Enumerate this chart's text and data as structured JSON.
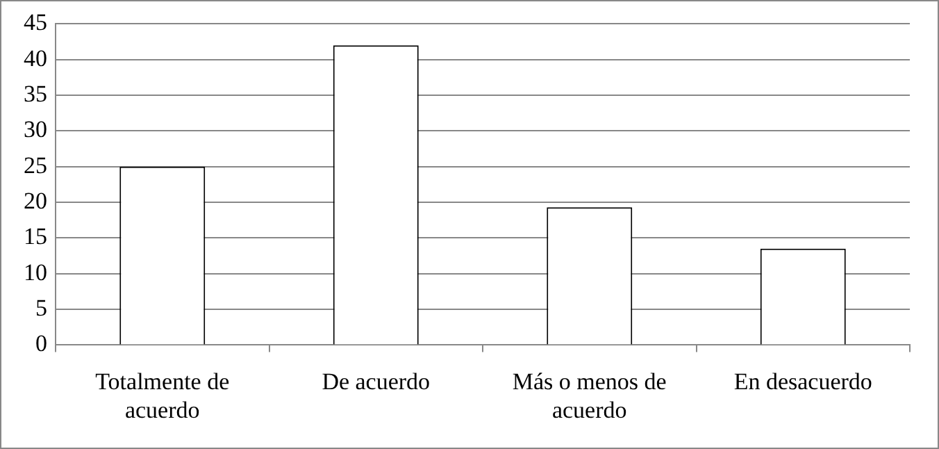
{
  "chart_data": {
    "type": "bar",
    "categories": [
      "Totalmente de acuerdo",
      "De acuerdo",
      "Más o menos de acuerdo",
      "En desacuerdo"
    ],
    "values": [
      25,
      42,
      19.3,
      13.5
    ],
    "color": "#ffffff",
    "ylim": [
      0,
      45
    ],
    "yticks": [
      0,
      5,
      10,
      15,
      20,
      25,
      30,
      35,
      40,
      45
    ],
    "grid": "y",
    "legend": false
  }
}
